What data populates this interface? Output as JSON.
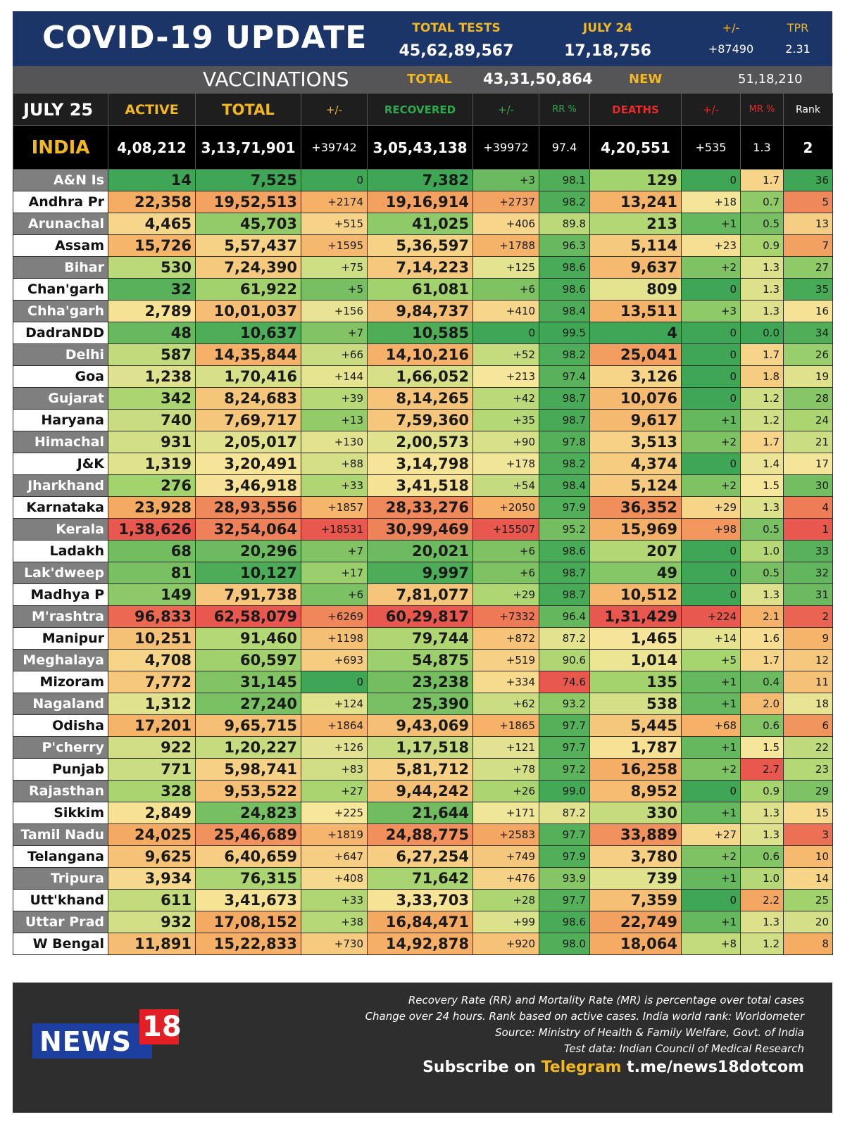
{
  "header": {
    "title": "COVID-19 UPDATE",
    "total_tests_label": "TOTAL TESTS",
    "total_tests_value": "45,62,89,567",
    "date_label": "JULY 24",
    "date_tests": "17,18,756",
    "change_label": "+/-",
    "change_value": "+87490",
    "tpr_label": "TPR",
    "tpr_value": "2.31"
  },
  "vaccinations": {
    "label": "VACCINATIONS",
    "total_label": "TOTAL",
    "total_value": "43,31,50,864",
    "new_label": "NEW",
    "new_value": "51,18,210"
  },
  "columns": {
    "date": "JULY 25",
    "active": "ACTIVE",
    "total": "TOTAL",
    "total_change": "+/-",
    "recovered": "RECOVERED",
    "recovered_change": "+/-",
    "rr": "RR %",
    "deaths": "DEATHS",
    "deaths_change": "+/-",
    "mr": "MR %",
    "rank": "Rank"
  },
  "colors": {
    "header_blue": "#1c3569",
    "accent_yellow": "#f3b81e",
    "active_green": "#2ea84f",
    "recovered_green": "#2ea84f",
    "deaths_red": "#e62a2a",
    "dark_grey": "#555557"
  },
  "india": {
    "name": "INDIA",
    "active": "4,08,212",
    "total": "3,13,71,901",
    "total_change": "+39742",
    "recovered": "3,05,43,138",
    "recovered_change": "+39972",
    "rr": "97.4",
    "deaths": "4,20,551",
    "deaths_change": "+535",
    "mr": "1.3",
    "rank": "2"
  },
  "rows": [
    {
      "state": "A&N Is",
      "active": "14",
      "total": "7,525",
      "total_change": "0",
      "recovered": "7,382",
      "recovered_change": "+3",
      "rr": "98.1",
      "deaths": "129",
      "deaths_change": "0",
      "mr": "1.7",
      "rank": "36"
    },
    {
      "state": "Andhra Pr",
      "active": "22,358",
      "total": "19,52,513",
      "total_change": "+2174",
      "recovered": "19,16,914",
      "recovered_change": "+2737",
      "rr": "98.2",
      "deaths": "13,241",
      "deaths_change": "+18",
      "mr": "0.7",
      "rank": "5"
    },
    {
      "state": "Arunachal",
      "active": "4,465",
      "total": "45,703",
      "total_change": "+515",
      "recovered": "41,025",
      "recovered_change": "+406",
      "rr": "89.8",
      "deaths": "213",
      "deaths_change": "+1",
      "mr": "0.5",
      "rank": "13"
    },
    {
      "state": "Assam",
      "active": "15,726",
      "total": "5,57,437",
      "total_change": "+1595",
      "recovered": "5,36,597",
      "recovered_change": "+1788",
      "rr": "96.3",
      "deaths": "5,114",
      "deaths_change": "+23",
      "mr": "0.9",
      "rank": "7"
    },
    {
      "state": "Bihar",
      "active": "530",
      "total": "7,24,390",
      "total_change": "+75",
      "recovered": "7,14,223",
      "recovered_change": "+125",
      "rr": "98.6",
      "deaths": "9,637",
      "deaths_change": "+2",
      "mr": "1.3",
      "rank": "27"
    },
    {
      "state": "Chan'garh",
      "active": "32",
      "total": "61,922",
      "total_change": "+5",
      "recovered": "61,081",
      "recovered_change": "+6",
      "rr": "98.6",
      "deaths": "809",
      "deaths_change": "0",
      "mr": "1.3",
      "rank": "35"
    },
    {
      "state": "Chha'garh",
      "active": "2,789",
      "total": "10,01,037",
      "total_change": "+156",
      "recovered": "9,84,737",
      "recovered_change": "+410",
      "rr": "98.4",
      "deaths": "13,511",
      "deaths_change": "+3",
      "mr": "1.3",
      "rank": "16"
    },
    {
      "state": "DadraNDD",
      "active": "48",
      "total": "10,637",
      "total_change": "+7",
      "recovered": "10,585",
      "recovered_change": "0",
      "rr": "99.5",
      "deaths": "4",
      "deaths_change": "0",
      "mr": "0.0",
      "rank": "34"
    },
    {
      "state": "Delhi",
      "active": "587",
      "total": "14,35,844",
      "total_change": "+66",
      "recovered": "14,10,216",
      "recovered_change": "+52",
      "rr": "98.2",
      "deaths": "25,041",
      "deaths_change": "0",
      "mr": "1.7",
      "rank": "26"
    },
    {
      "state": "Goa",
      "active": "1,238",
      "total": "1,70,416",
      "total_change": "+144",
      "recovered": "1,66,052",
      "recovered_change": "+213",
      "rr": "97.4",
      "deaths": "3,126",
      "deaths_change": "0",
      "mr": "1.8",
      "rank": "19"
    },
    {
      "state": "Gujarat",
      "active": "342",
      "total": "8,24,683",
      "total_change": "+39",
      "recovered": "8,14,265",
      "recovered_change": "+42",
      "rr": "98.7",
      "deaths": "10,076",
      "deaths_change": "0",
      "mr": "1.2",
      "rank": "28"
    },
    {
      "state": "Haryana",
      "active": "740",
      "total": "7,69,717",
      "total_change": "+13",
      "recovered": "7,59,360",
      "recovered_change": "+35",
      "rr": "98.7",
      "deaths": "9,617",
      "deaths_change": "+1",
      "mr": "1.2",
      "rank": "24"
    },
    {
      "state": "Himachal",
      "active": "931",
      "total": "2,05,017",
      "total_change": "+130",
      "recovered": "2,00,573",
      "recovered_change": "+90",
      "rr": "97.8",
      "deaths": "3,513",
      "deaths_change": "+2",
      "mr": "1.7",
      "rank": "21"
    },
    {
      "state": "J&K",
      "active": "1,319",
      "total": "3,20,491",
      "total_change": "+88",
      "recovered": "3,14,798",
      "recovered_change": "+178",
      "rr": "98.2",
      "deaths": "4,374",
      "deaths_change": "0",
      "mr": "1.4",
      "rank": "17"
    },
    {
      "state": "Jharkhand",
      "active": "276",
      "total": "3,46,918",
      "total_change": "+33",
      "recovered": "3,41,518",
      "recovered_change": "+54",
      "rr": "98.4",
      "deaths": "5,124",
      "deaths_change": "+2",
      "mr": "1.5",
      "rank": "30"
    },
    {
      "state": "Karnataka",
      "active": "23,928",
      "total": "28,93,556",
      "total_change": "+1857",
      "recovered": "28,33,276",
      "recovered_change": "+2050",
      "rr": "97.9",
      "deaths": "36,352",
      "deaths_change": "+29",
      "mr": "1.3",
      "rank": "4"
    },
    {
      "state": "Kerala",
      "active": "1,38,626",
      "total": "32,54,064",
      "total_change": "+18531",
      "recovered": "30,99,469",
      "recovered_change": "+15507",
      "rr": "95.2",
      "deaths": "15,969",
      "deaths_change": "+98",
      "mr": "0.5",
      "rank": "1"
    },
    {
      "state": "Ladakh",
      "active": "68",
      "total": "20,296",
      "total_change": "+7",
      "recovered": "20,021",
      "recovered_change": "+6",
      "rr": "98.6",
      "deaths": "207",
      "deaths_change": "0",
      "mr": "1.0",
      "rank": "33"
    },
    {
      "state": "Lak'dweep",
      "active": "81",
      "total": "10,127",
      "total_change": "+17",
      "recovered": "9,997",
      "recovered_change": "+6",
      "rr": "98.7",
      "deaths": "49",
      "deaths_change": "0",
      "mr": "0.5",
      "rank": "32"
    },
    {
      "state": "Madhya P",
      "active": "149",
      "total": "7,91,738",
      "total_change": "+6",
      "recovered": "7,81,077",
      "recovered_change": "+29",
      "rr": "98.7",
      "deaths": "10,512",
      "deaths_change": "0",
      "mr": "1.3",
      "rank": "31"
    },
    {
      "state": "M'rashtra",
      "active": "96,833",
      "total": "62,58,079",
      "total_change": "+6269",
      "recovered": "60,29,817",
      "recovered_change": "+7332",
      "rr": "96.4",
      "deaths": "1,31,429",
      "deaths_change": "+224",
      "mr": "2.1",
      "rank": "2"
    },
    {
      "state": "Manipur",
      "active": "10,251",
      "total": "91,460",
      "total_change": "+1198",
      "recovered": "79,744",
      "recovered_change": "+872",
      "rr": "87.2",
      "deaths": "1,465",
      "deaths_change": "+14",
      "mr": "1.6",
      "rank": "9"
    },
    {
      "state": "Meghalaya",
      "active": "4,708",
      "total": "60,597",
      "total_change": "+693",
      "recovered": "54,875",
      "recovered_change": "+519",
      "rr": "90.6",
      "deaths": "1,014",
      "deaths_change": "+5",
      "mr": "1.7",
      "rank": "12"
    },
    {
      "state": "Mizoram",
      "active": "7,772",
      "total": "31,145",
      "total_change": "0",
      "recovered": "23,238",
      "recovered_change": "+334",
      "rr": "74.6",
      "deaths": "135",
      "deaths_change": "+1",
      "mr": "0.4",
      "rank": "11"
    },
    {
      "state": "Nagaland",
      "active": "1,312",
      "total": "27,240",
      "total_change": "+124",
      "recovered": "25,390",
      "recovered_change": "+62",
      "rr": "93.2",
      "deaths": "538",
      "deaths_change": "+1",
      "mr": "2.0",
      "rank": "18"
    },
    {
      "state": "Odisha",
      "active": "17,201",
      "total": "9,65,715",
      "total_change": "+1864",
      "recovered": "9,43,069",
      "recovered_change": "+1865",
      "rr": "97.7",
      "deaths": "5,445",
      "deaths_change": "+68",
      "mr": "0.6",
      "rank": "6"
    },
    {
      "state": "P'cherry",
      "active": "922",
      "total": "1,20,227",
      "total_change": "+126",
      "recovered": "1,17,518",
      "recovered_change": "+121",
      "rr": "97.7",
      "deaths": "1,787",
      "deaths_change": "+1",
      "mr": "1.5",
      "rank": "22"
    },
    {
      "state": "Punjab",
      "active": "771",
      "total": "5,98,741",
      "total_change": "+83",
      "recovered": "5,81,712",
      "recovered_change": "+78",
      "rr": "97.2",
      "deaths": "16,258",
      "deaths_change": "+2",
      "mr": "2.7",
      "rank": "23"
    },
    {
      "state": "Rajasthan",
      "active": "328",
      "total": "9,53,522",
      "total_change": "+27",
      "recovered": "9,44,242",
      "recovered_change": "+26",
      "rr": "99.0",
      "deaths": "8,952",
      "deaths_change": "0",
      "mr": "0.9",
      "rank": "29"
    },
    {
      "state": "Sikkim",
      "active": "2,849",
      "total": "24,823",
      "total_change": "+225",
      "recovered": "21,644",
      "recovered_change": "+171",
      "rr": "87.2",
      "deaths": "330",
      "deaths_change": "+1",
      "mr": "1.3",
      "rank": "15"
    },
    {
      "state": "Tamil Nadu",
      "active": "24,025",
      "total": "25,46,689",
      "total_change": "+1819",
      "recovered": "24,88,775",
      "recovered_change": "+2583",
      "rr": "97.7",
      "deaths": "33,889",
      "deaths_change": "+27",
      "mr": "1.3",
      "rank": "3"
    },
    {
      "state": "Telangana",
      "active": "9,625",
      "total": "6,40,659",
      "total_change": "+647",
      "recovered": "6,27,254",
      "recovered_change": "+749",
      "rr": "97.9",
      "deaths": "3,780",
      "deaths_change": "+2",
      "mr": "0.6",
      "rank": "10"
    },
    {
      "state": "Tripura",
      "active": "3,934",
      "total": "76,315",
      "total_change": "+408",
      "recovered": "71,642",
      "recovered_change": "+476",
      "rr": "93.9",
      "deaths": "739",
      "deaths_change": "+1",
      "mr": "1.0",
      "rank": "14"
    },
    {
      "state": "Utt'khand",
      "active": "611",
      "total": "3,41,673",
      "total_change": "+33",
      "recovered": "3,33,703",
      "recovered_change": "+28",
      "rr": "97.7",
      "deaths": "7,359",
      "deaths_change": "0",
      "mr": "2.2",
      "rank": "25"
    },
    {
      "state": "Uttar Prad",
      "active": "932",
      "total": "17,08,152",
      "total_change": "+38",
      "recovered": "16,84,471",
      "recovered_change": "+99",
      "rr": "98.6",
      "deaths": "22,749",
      "deaths_change": "+1",
      "mr": "1.3",
      "rank": "20"
    },
    {
      "state": "W Bengal",
      "active": "11,891",
      "total": "15,22,833",
      "total_change": "+730",
      "recovered": "14,92,878",
      "recovered_change": "+920",
      "rr": "98.0",
      "deaths": "18,064",
      "deaths_change": "+8",
      "mr": "1.2",
      "rank": "8"
    }
  ],
  "footer": {
    "logo_text": "NEWS",
    "logo_number": "18",
    "notes": [
      "Recovery Rate (RR) and Mortality Rate (MR) is percentage over total cases",
      "Change over 24 hours. Rank based on active cases. India world rank: Worldometer",
      "Source: Ministry of Health & Family Welfare, Govt. of India",
      "Test data: Indian Council of Medical Research"
    ],
    "subscribe_prefix": "Subscribe on",
    "subscribe_platform": "Telegram",
    "subscribe_link": "t.me/news18dotcom"
  }
}
